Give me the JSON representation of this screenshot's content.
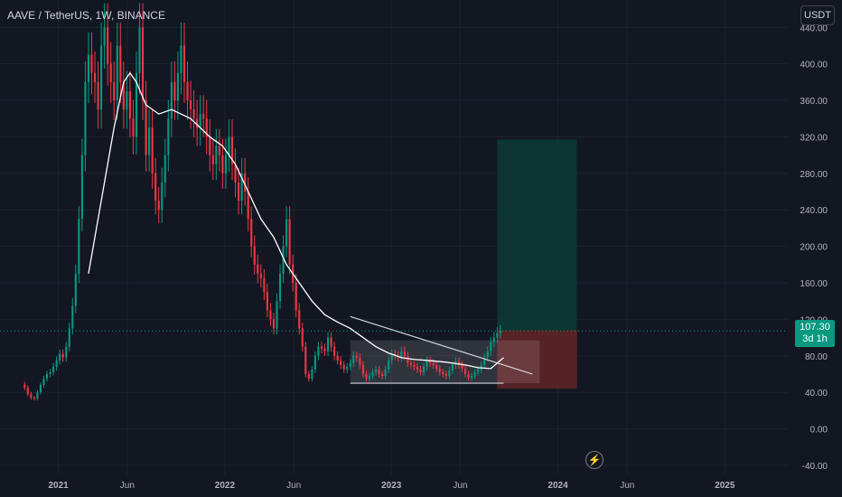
{
  "header": {
    "symbol_title": "AAVE / TetherUS, 1W, BINANCE",
    "currency_label": "USDT"
  },
  "price_badge": {
    "price": "107.30",
    "countdown": "3d 1h"
  },
  "colors": {
    "background": "#131722",
    "grid": "#1e222d",
    "up": "#089981",
    "down": "#f23645",
    "axis_text": "#b2b5be",
    "ma_line": "#ffffff",
    "target_zone": "#0c3b36",
    "stop_zone": "#5e2426"
  },
  "icons": {
    "replay": "lightning-icon"
  },
  "chart_data": {
    "type": "candlestick",
    "y_tick_labels": [
      "440.00",
      "400.00",
      "360.00",
      "320.00",
      "280.00",
      "240.00",
      "200.00",
      "160.00",
      "120.00",
      "80.00",
      "40.00",
      "0.00",
      "-40.00"
    ],
    "y_ticks": [
      440,
      400,
      360,
      320,
      280,
      240,
      200,
      160,
      120,
      80,
      40,
      0,
      -40
    ],
    "ylim": [
      -50,
      470
    ],
    "x_tick_labels": [
      "2021",
      "Jun",
      "2022",
      "Jun",
      "2023",
      "Jun",
      "2024",
      "Jun",
      "2025"
    ],
    "x_ticks": [
      "2021-01-01",
      "2021-06-01",
      "2022-01-01",
      "2022-06-01",
      "2023-01-01",
      "2023-06-01",
      "2024-01-01",
      "2024-06-01",
      "2025-01-01"
    ],
    "x_bold_ticks": [
      "2021",
      "2022",
      "2023",
      "2024",
      "2025"
    ],
    "xlim": [
      "2020-08-26",
      "2025-05-19"
    ],
    "grid": true,
    "last_price": 107.3,
    "weekly_close": [
      45,
      38,
      34,
      33,
      40,
      48,
      55,
      60,
      62,
      68,
      75,
      82,
      78,
      90,
      110,
      135,
      170,
      230,
      300,
      380,
      410,
      390,
      380,
      350,
      420,
      440,
      400,
      380,
      360,
      420,
      380,
      350,
      370,
      340,
      320,
      390,
      440,
      360,
      300,
      330,
      280,
      250,
      240,
      270,
      300,
      340,
      380,
      360,
      390,
      420,
      380,
      360,
      350,
      340,
      330,
      345,
      340,
      320,
      300,
      290,
      310,
      300,
      280,
      300,
      320,
      290,
      270,
      250,
      280,
      260,
      230,
      200,
      180,
      170,
      165,
      150,
      130,
      120,
      110,
      140,
      170,
      200,
      230,
      180,
      160,
      130,
      110,
      90,
      60,
      55,
      65,
      80,
      90,
      88,
      85,
      100,
      90,
      80,
      75,
      70,
      65,
      68,
      72,
      80,
      78,
      70,
      60,
      55,
      58,
      62,
      65,
      60,
      58,
      65,
      75,
      82,
      80,
      78,
      85,
      80,
      72,
      70,
      68,
      65,
      62,
      68,
      75,
      72,
      70,
      66,
      62,
      60,
      58,
      64,
      70,
      74,
      70,
      66,
      60,
      56,
      58,
      62,
      65,
      70,
      78,
      85,
      95,
      100,
      105,
      107.3
    ],
    "moving_average": [
      [
        20,
        170
      ],
      [
        24,
        250
      ],
      [
        28,
        330
      ],
      [
        31,
        380
      ],
      [
        33,
        390
      ],
      [
        35,
        380
      ],
      [
        38,
        355
      ],
      [
        42,
        345
      ],
      [
        46,
        350
      ],
      [
        52,
        340
      ],
      [
        58,
        320
      ],
      [
        62,
        310
      ],
      [
        66,
        290
      ],
      [
        70,
        260
      ],
      [
        74,
        230
      ],
      [
        78,
        210
      ],
      [
        82,
        180
      ],
      [
        86,
        160
      ],
      [
        90,
        140
      ],
      [
        94,
        125
      ],
      [
        98,
        117
      ],
      [
        102,
        110
      ],
      [
        106,
        100
      ],
      [
        110,
        90
      ],
      [
        114,
        83
      ],
      [
        118,
        78
      ],
      [
        122,
        76
      ],
      [
        126,
        75
      ],
      [
        132,
        73
      ],
      [
        138,
        70
      ],
      [
        142,
        67
      ],
      [
        146,
        66
      ],
      [
        148,
        72
      ],
      [
        150,
        78
      ]
    ],
    "triangle": {
      "upper": [
        [
          102,
          123
        ],
        [
          159,
          60
        ]
      ],
      "lower": [
        [
          102,
          50
        ],
        [
          150,
          50
        ]
      ]
    },
    "range_box": {
      "x": [
        102,
        150
      ],
      "y": [
        50,
        97
      ]
    },
    "position": {
      "entry": 108,
      "target": 317,
      "stop": 44,
      "x": [
        148,
        173
      ]
    }
  }
}
